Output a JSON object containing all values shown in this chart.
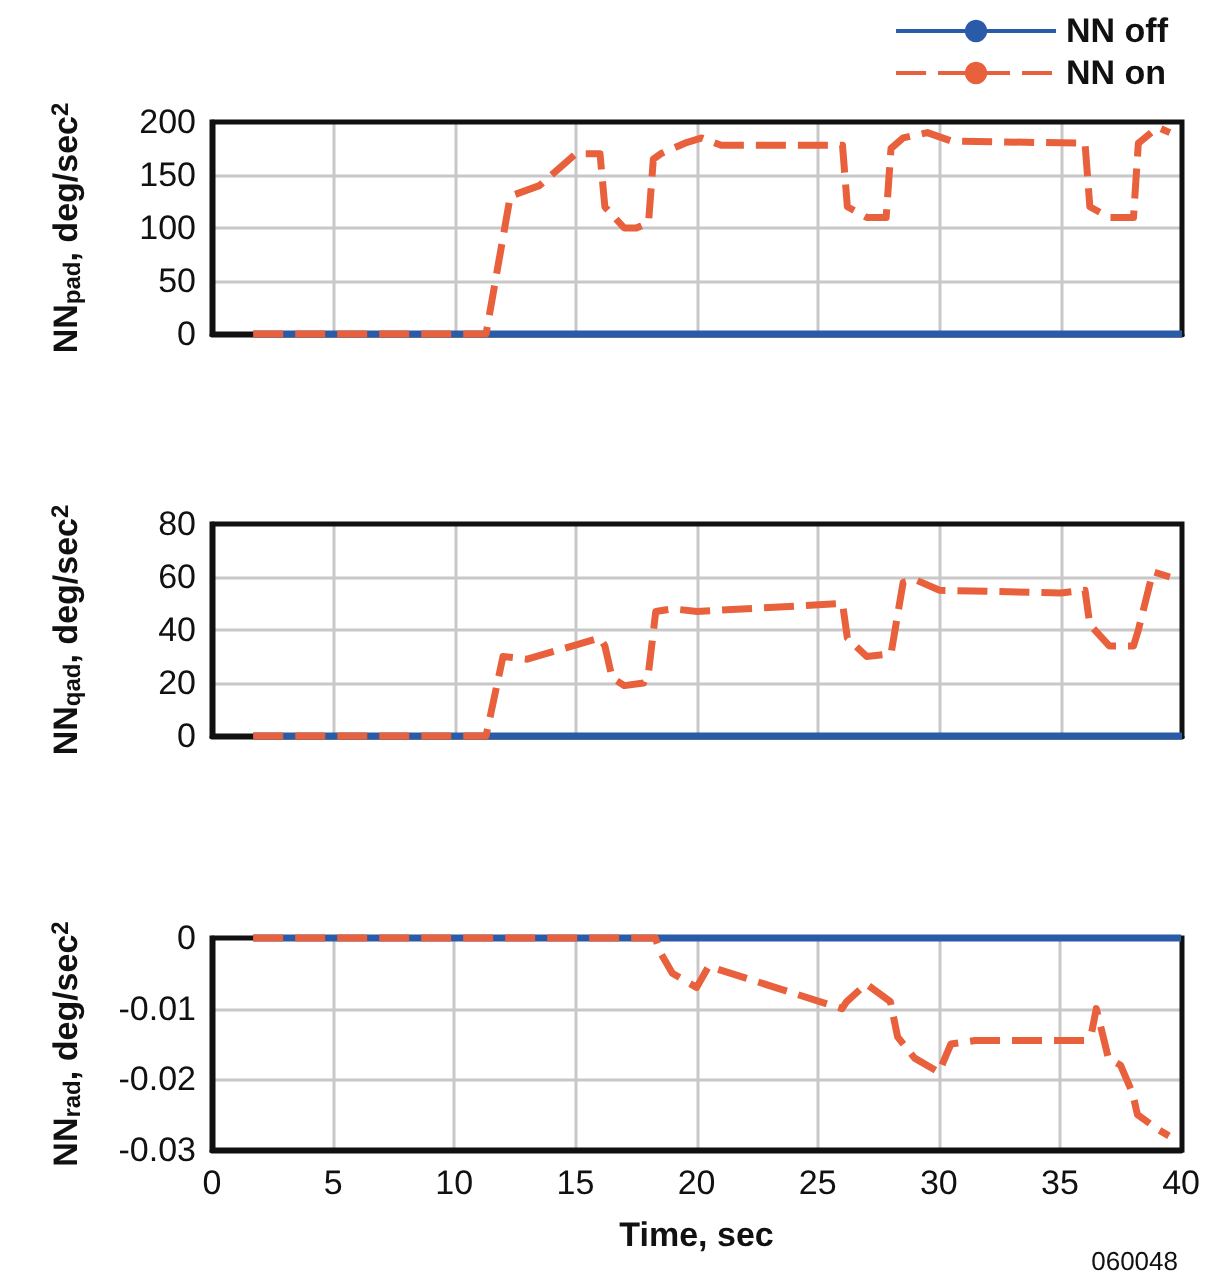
{
  "chart_data": [
    {
      "type": "line",
      "ylabel": "NN$_{pad}$, deg/sec$^{2}$",
      "xlim": [
        0,
        40
      ],
      "xticks": [
        0,
        5,
        10,
        15,
        20,
        25,
        30,
        35,
        40
      ],
      "ylim": [
        0,
        200
      ],
      "yticks": [
        0,
        50,
        100,
        150,
        200
      ],
      "grid": true,
      "legend": "top right",
      "tick_labels": "y",
      "marker": "none",
      "series": [
        {
          "name": "NN off",
          "color": "#2a5ba8",
          "line_style": "solid",
          "x": [
            1.7,
            40
          ],
          "values": [
            0,
            0
          ]
        },
        {
          "name": "NN on",
          "color": "#e8603c",
          "line_style": "dashed",
          "x": [
            1.7,
            11.3,
            12.3,
            13.5,
            15,
            16,
            16.2,
            17,
            17.5,
            18,
            18.2,
            18.5,
            19.5,
            20.2,
            21,
            26,
            26.2,
            27,
            27.8,
            28,
            28.5,
            29.5,
            30.5,
            36,
            36.2,
            37,
            38,
            38.2,
            39,
            39.5
          ],
          "values": [
            0,
            0,
            130,
            140,
            170,
            170,
            120,
            100,
            100,
            105,
            165,
            170,
            180,
            185,
            178,
            178,
            120,
            110,
            110,
            175,
            185,
            190,
            182,
            180,
            120,
            110,
            110,
            180,
            195,
            190
          ]
        }
      ]
    },
    {
      "type": "line",
      "ylabel": "NN$_{qad}$, deg/sec$^{2}$",
      "xlim": [
        0,
        40
      ],
      "xticks": [
        0,
        5,
        10,
        15,
        20,
        25,
        30,
        35,
        40
      ],
      "ylim": [
        0,
        80
      ],
      "yticks": [
        0,
        20,
        40,
        60,
        80
      ],
      "grid": true,
      "tick_labels": "y",
      "marker": "none",
      "series": [
        {
          "color": "#2a5ba8",
          "line_style": "solid",
          "x": [
            1.7,
            40
          ],
          "values": [
            0,
            0
          ]
        },
        {
          "color": "#e8603c",
          "line_style": "dashed",
          "x": [
            1.7,
            11.3,
            12,
            13,
            16,
            16.2,
            16.5,
            17,
            17.8,
            18,
            18.3,
            19,
            20,
            26,
            26.2,
            27,
            28,
            28.5,
            29,
            30,
            35,
            36,
            36.2,
            37,
            38,
            38.2,
            38.8,
            39.5
          ],
          "values": [
            0,
            0,
            30,
            29,
            37,
            34,
            22,
            19,
            20,
            24,
            47,
            48,
            47,
            50,
            37,
            30,
            31,
            58,
            59,
            55,
            54,
            55,
            42,
            34,
            34,
            40,
            62,
            60
          ]
        }
      ]
    },
    {
      "type": "line",
      "xlabel": "Time, sec",
      "ylabel": "NN$_{rad}$, deg/sec$^{2}$",
      "xlim": [
        0,
        40
      ],
      "xticks": [
        0,
        5,
        10,
        15,
        20,
        25,
        30,
        35,
        40
      ],
      "ylim": [
        -0.03,
        0
      ],
      "yticks": [
        -0.03,
        -0.02,
        -0.01,
        0
      ],
      "grid": true,
      "marker": "none",
      "annotations": [
        "060048"
      ],
      "series": [
        {
          "color": "#2a5ba8",
          "line_style": "solid",
          "x": [
            1.7,
            40
          ],
          "values": [
            0,
            0
          ]
        },
        {
          "color": "#e8603c",
          "line_style": "dashed",
          "x": [
            1.7,
            18.3,
            18.5,
            19,
            20,
            20.5,
            26,
            26.2,
            27,
            28,
            28.3,
            29,
            30,
            30.5,
            31.5,
            36,
            36.3,
            36.5,
            37,
            37.5,
            38,
            38.2,
            39,
            39.5
          ],
          "values": [
            0,
            0,
            -0.002,
            -0.005,
            -0.007,
            -0.004,
            -0.01,
            -0.009,
            -0.0065,
            -0.009,
            -0.014,
            -0.017,
            -0.019,
            -0.015,
            -0.0145,
            -0.0145,
            -0.0135,
            -0.01,
            -0.017,
            -0.018,
            -0.022,
            -0.025,
            -0.027,
            -0.028
          ]
        }
      ]
    }
  ]
}
